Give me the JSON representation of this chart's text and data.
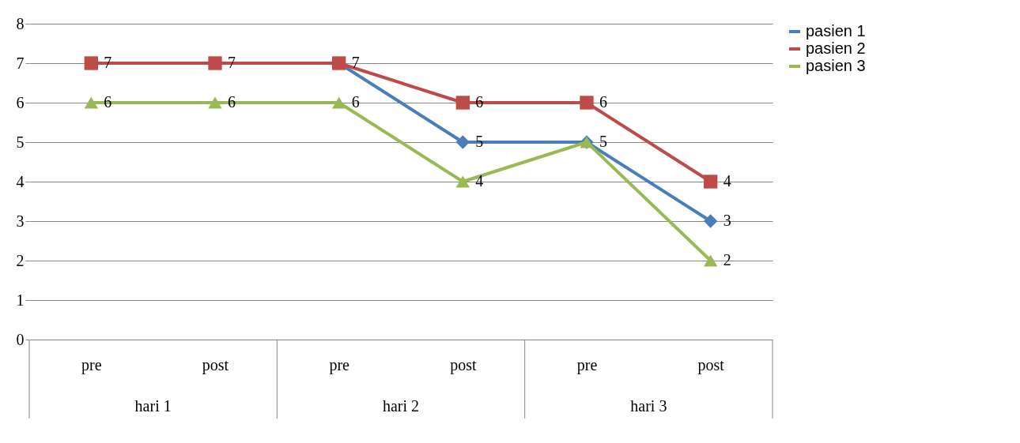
{
  "chart_data": {
    "type": "line",
    "categories": [
      "pre",
      "post",
      "pre",
      "post",
      "pre",
      "post"
    ],
    "annotations": [
      "hari 1",
      "hari 2",
      "hari 3"
    ],
    "series": [
      {
        "name": "pasien 1",
        "color": "#4a7ebb",
        "marker": "diamond",
        "values": [
          7,
          7,
          7,
          5,
          5,
          3
        ],
        "value_labels": [
          "7",
          "7",
          "7",
          "5",
          "5",
          "3"
        ]
      },
      {
        "name": "pasien 2",
        "color": "#be4b48",
        "marker": "square",
        "values": [
          7,
          7,
          7,
          6,
          6,
          4
        ],
        "value_labels": [
          null,
          null,
          null,
          "6",
          "6",
          "4"
        ]
      },
      {
        "name": "pasien 3",
        "color": "#98b954",
        "marker": "triangle",
        "values": [
          6,
          6,
          6,
          4,
          5,
          2
        ],
        "value_labels": [
          "6",
          "6",
          "6",
          "4",
          null,
          "2"
        ]
      }
    ],
    "ylim": [
      0,
      8
    ],
    "yticks": [
      0,
      1,
      2,
      3,
      4,
      5,
      6,
      7,
      8
    ],
    "grid": "y",
    "legend": "right"
  }
}
